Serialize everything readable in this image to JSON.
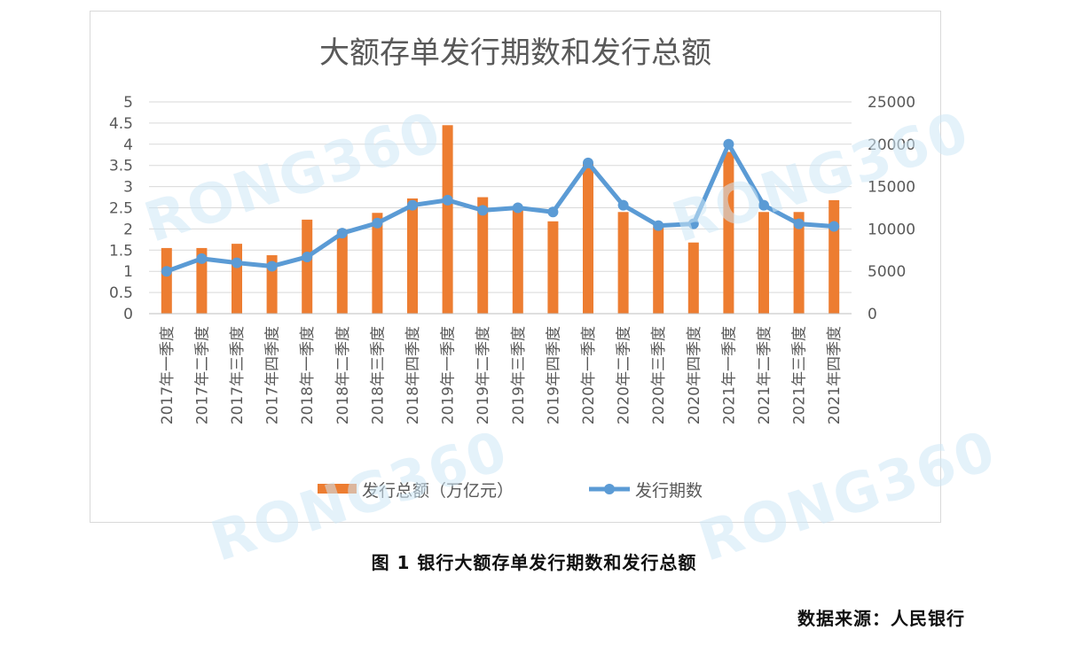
{
  "chart_data": {
    "type": "bar+line",
    "title": "大额存单发行期数和发行总额",
    "categories": [
      "2017年一季度",
      "2017年二季度",
      "2017年三季度",
      "2017年四季度",
      "2018年一季度",
      "2018年二季度",
      "2018年三季度",
      "2018年四季度",
      "2019年一季度",
      "2019年二季度",
      "2019年三季度",
      "2019年四季度",
      "2020年一季度",
      "2020年二季度",
      "2020年三季度",
      "2020年四季度",
      "2021年一季度",
      "2021年二季度",
      "2021年三季度",
      "2021年四季度"
    ],
    "series": [
      {
        "name": "发行总额（万亿元）",
        "type": "bar",
        "axis": "left",
        "color": "#ed7d31",
        "values": [
          1.55,
          1.55,
          1.65,
          1.38,
          2.22,
          1.98,
          2.38,
          2.72,
          4.45,
          2.75,
          2.5,
          2.18,
          3.55,
          2.4,
          2.05,
          1.68,
          3.82,
          2.4,
          2.4,
          2.68
        ]
      },
      {
        "name": "发行期数",
        "type": "line",
        "axis": "right",
        "color": "#5b9bd5",
        "values": [
          5000,
          6500,
          6000,
          5600,
          6700,
          9500,
          10700,
          12800,
          13400,
          12200,
          12500,
          12000,
          17800,
          12800,
          10400,
          10600,
          20000,
          12800,
          10600,
          10300
        ]
      }
    ],
    "y_left": {
      "min": 0,
      "max": 5,
      "ticks": [
        "0",
        "0.5",
        "1",
        "1.5",
        "2",
        "2.5",
        "3",
        "3.5",
        "4",
        "4.5",
        "5"
      ]
    },
    "y_right": {
      "min": 0,
      "max": 25000,
      "ticks": [
        "0",
        "5000",
        "10000",
        "15000",
        "20000",
        "25000"
      ]
    },
    "grid": true,
    "legend_position": "bottom"
  },
  "watermark_text": "RONG360",
  "caption": "图 1  银行大额存单发行期数和发行总额",
  "source": "数据来源：人民银行"
}
